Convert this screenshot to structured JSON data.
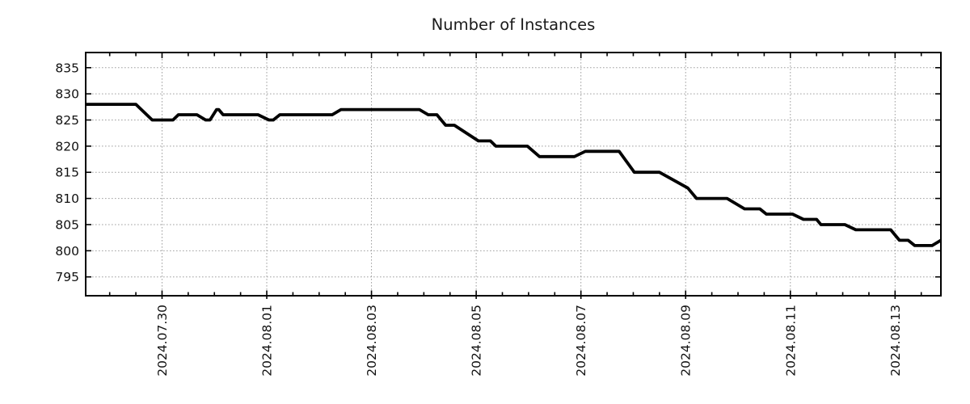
{
  "chart_data": {
    "type": "line",
    "title": "Number of Instances",
    "legend": null,
    "colors": {
      "background": "#ffffff",
      "line": "#000000",
      "grid": "#a0a0a0",
      "axis": "#000000",
      "text": "#111111"
    },
    "grid": {
      "style": "dotted",
      "color": "#a0a0a0"
    },
    "x_axis": {
      "domain_start": "2024-07-28T13:00:00",
      "domain_end": "2024-08-13T21:00:00",
      "minor_tick_interval_hours": 12,
      "major_ticks": [
        {
          "time": "2024-07-30T00:00:00",
          "label": "2024.07.30"
        },
        {
          "time": "2024-08-01T00:00:00",
          "label": "2024.08.01"
        },
        {
          "time": "2024-08-03T00:00:00",
          "label": "2024.08.03"
        },
        {
          "time": "2024-08-05T00:00:00",
          "label": "2024.08.05"
        },
        {
          "time": "2024-08-07T00:00:00",
          "label": "2024.08.07"
        },
        {
          "time": "2024-08-09T00:00:00",
          "label": "2024.08.09"
        },
        {
          "time": "2024-08-11T00:00:00",
          "label": "2024.08.11"
        },
        {
          "time": "2024-08-13T00:00:00",
          "label": "2024.08.13"
        }
      ]
    },
    "y_axis": {
      "min": 791.4,
      "max": 837.9,
      "ticks": [
        835,
        830,
        825,
        820,
        815,
        810,
        805,
        800,
        795
      ]
    },
    "series": [
      {
        "name": "instances",
        "color": "#000000",
        "points": [
          [
            "2024-07-28T13:00:00",
            828
          ],
          [
            "2024-07-29T12:00:00",
            828
          ],
          [
            "2024-07-29T19:30:00",
            825
          ],
          [
            "2024-07-30T05:00:00",
            825
          ],
          [
            "2024-07-30T07:30:00",
            826
          ],
          [
            "2024-07-30T16:00:00",
            826
          ],
          [
            "2024-07-30T20:00:00",
            825
          ],
          [
            "2024-07-30T22:00:00",
            825
          ],
          [
            "2024-07-31T01:00:00",
            827
          ],
          [
            "2024-07-31T02:00:00",
            827
          ],
          [
            "2024-07-31T04:00:00",
            826
          ],
          [
            "2024-07-31T20:00:00",
            826
          ],
          [
            "2024-08-01T01:00:00",
            825
          ],
          [
            "2024-08-01T03:00:00",
            825
          ],
          [
            "2024-08-01T06:00:00",
            826
          ],
          [
            "2024-08-02T06:00:00",
            826
          ],
          [
            "2024-08-02T10:00:00",
            827
          ],
          [
            "2024-08-03T22:00:00",
            827
          ],
          [
            "2024-08-04T02:00:00",
            826
          ],
          [
            "2024-08-04T06:00:00",
            826
          ],
          [
            "2024-08-04T10:00:00",
            824
          ],
          [
            "2024-08-04T14:00:00",
            824
          ],
          [
            "2024-08-05T01:00:00",
            821
          ],
          [
            "2024-08-05T06:30:00",
            821
          ],
          [
            "2024-08-05T09:00:00",
            820
          ],
          [
            "2024-08-05T23:30:00",
            820
          ],
          [
            "2024-08-06T05:00:00",
            818
          ],
          [
            "2024-08-06T21:00:00",
            818
          ],
          [
            "2024-08-07T02:00:00",
            819
          ],
          [
            "2024-08-07T17:30:00",
            819
          ],
          [
            "2024-08-08T00:30:00",
            815
          ],
          [
            "2024-08-08T12:00:00",
            815
          ],
          [
            "2024-08-09T01:00:00",
            812
          ],
          [
            "2024-08-09T05:00:00",
            810
          ],
          [
            "2024-08-09T19:00:00",
            810
          ],
          [
            "2024-08-10T03:00:00",
            808
          ],
          [
            "2024-08-10T10:00:00",
            808
          ],
          [
            "2024-08-10T13:00:00",
            807
          ],
          [
            "2024-08-11T01:00:00",
            807
          ],
          [
            "2024-08-11T06:00:00",
            806
          ],
          [
            "2024-08-11T12:00:00",
            806
          ],
          [
            "2024-08-11T14:00:00",
            805
          ],
          [
            "2024-08-12T01:00:00",
            805
          ],
          [
            "2024-08-12T06:00:00",
            804
          ],
          [
            "2024-08-12T22:00:00",
            804
          ],
          [
            "2024-08-13T02:00:00",
            802
          ],
          [
            "2024-08-13T06:00:00",
            802
          ],
          [
            "2024-08-13T09:00:00",
            801
          ],
          [
            "2024-08-13T17:00:00",
            801
          ],
          [
            "2024-08-13T21:00:00",
            802
          ]
        ]
      }
    ]
  }
}
